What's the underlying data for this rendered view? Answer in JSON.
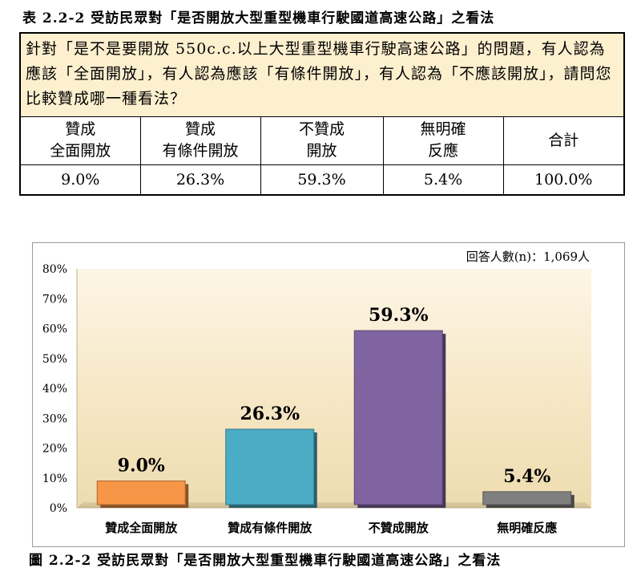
{
  "table_title": "表 2.2-2  受訪民眾對「是否開放大型重型機車行駛國道高速公路」之看法",
  "question": "針對「是不是要開放 550c.c.以上大型重型機車行駛高速公路」的問題，有人認為應該「全面開放」，有人認為應該「有條件開放」，有人認為「不應該開放」，請問您比較贊成哪一種看法？",
  "table_headers": [
    [
      "贊成",
      "全面開放"
    ],
    [
      "贊成",
      "有條件開放"
    ],
    [
      "不贊成",
      "開放"
    ],
    [
      "無明確",
      "反應"
    ],
    [
      "合計"
    ]
  ],
  "table_values": [
    "9.0%",
    "26.3%",
    "59.3%",
    "5.4%",
    "100.0%"
  ],
  "figure_title": "圖 2.2-2  受訪民眾對「是否開放大型重型機車行駛國道高速公路」之看法",
  "chart_data": {
    "type": "bar",
    "categories": [
      "贊成全面開放",
      "贊成有條件開放",
      "不贊成開放",
      "無明確反應"
    ],
    "values": [
      9.0,
      26.3,
      59.3,
      5.4
    ],
    "data_labels": [
      "9.0%",
      "26.3%",
      "59.3%",
      "5.4%"
    ],
    "colors": [
      "#f79646",
      "#4bacc6",
      "#8064a2",
      "#7f7f7f"
    ],
    "ylim": [
      0,
      80
    ],
    "yticks": [
      "0%",
      "10%",
      "20%",
      "30%",
      "40%",
      "50%",
      "60%",
      "70%",
      "80%"
    ],
    "annotation": "回答人數(n)：1,069人",
    "grid": false,
    "legend": "none"
  }
}
